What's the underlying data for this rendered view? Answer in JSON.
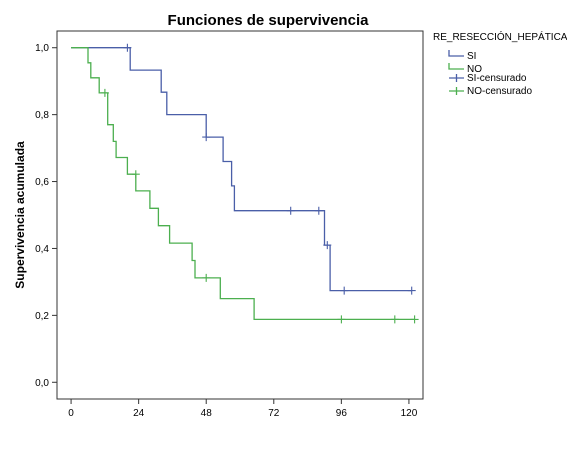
{
  "chart_data": {
    "type": "line",
    "title": "Funciones de supervivencia",
    "xlabel": "",
    "ylabel": "Supervivencia acumulada",
    "xlim": [
      -5,
      125
    ],
    "ylim": [
      -0.05,
      1.05
    ],
    "xticks": [
      0,
      24,
      48,
      72,
      96,
      120
    ],
    "yticks": [
      0.0,
      0.2,
      0.4,
      0.6,
      0.8,
      1.0
    ],
    "ytick_labels": [
      "0,0",
      "0,2",
      "0,4",
      "0,6",
      "0,8",
      "1,0"
    ],
    "legend": {
      "title": "RE_RESECCIÓN_HEPÁTICA",
      "placement": "top-right",
      "entries": [
        "SI",
        "NO",
        "SI-censurado",
        "NO-censurado"
      ]
    },
    "series": [
      {
        "name": "SI",
        "color": "#4a5fa8",
        "steps": [
          [
            0,
            1.0
          ],
          [
            21,
            1.0
          ],
          [
            21,
            0.933
          ],
          [
            32,
            0.933
          ],
          [
            32,
            0.867
          ],
          [
            34,
            0.867
          ],
          [
            34,
            0.8
          ],
          [
            48,
            0.8
          ],
          [
            48,
            0.733
          ],
          [
            54,
            0.733
          ],
          [
            54,
            0.66
          ],
          [
            57,
            0.66
          ],
          [
            57,
            0.587
          ],
          [
            58,
            0.587
          ],
          [
            58,
            0.513
          ],
          [
            90,
            0.513
          ],
          [
            90,
            0.41
          ],
          [
            92,
            0.41
          ],
          [
            92,
            0.274
          ],
          [
            121,
            0.274
          ]
        ],
        "censored": [
          [
            20,
            1.0
          ],
          [
            48,
            0.733
          ],
          [
            78,
            0.513
          ],
          [
            88,
            0.513
          ],
          [
            91,
            0.41
          ],
          [
            97,
            0.274
          ],
          [
            121,
            0.274
          ]
        ]
      },
      {
        "name": "NO",
        "color": "#4caf4f",
        "steps": [
          [
            0,
            1.0
          ],
          [
            6,
            1.0
          ],
          [
            6,
            0.955
          ],
          [
            7,
            0.955
          ],
          [
            7,
            0.91
          ],
          [
            10,
            0.91
          ],
          [
            10,
            0.865
          ],
          [
            13,
            0.865
          ],
          [
            13,
            0.77
          ],
          [
            15,
            0.77
          ],
          [
            15,
            0.72
          ],
          [
            16,
            0.72
          ],
          [
            16,
            0.672
          ],
          [
            20,
            0.672
          ],
          [
            20,
            0.622
          ],
          [
            23,
            0.622
          ],
          [
            23,
            0.572
          ],
          [
            28,
            0.572
          ],
          [
            28,
            0.52
          ],
          [
            31,
            0.52
          ],
          [
            31,
            0.468
          ],
          [
            35,
            0.468
          ],
          [
            35,
            0.416
          ],
          [
            43,
            0.416
          ],
          [
            43,
            0.364
          ],
          [
            44,
            0.364
          ],
          [
            44,
            0.312
          ],
          [
            53,
            0.312
          ],
          [
            53,
            0.25
          ],
          [
            65,
            0.25
          ],
          [
            65,
            0.188
          ],
          [
            122,
            0.188
          ]
        ],
        "censored": [
          [
            12,
            0.865
          ],
          [
            23,
            0.622
          ],
          [
            48,
            0.312
          ],
          [
            96,
            0.188
          ],
          [
            115,
            0.188
          ],
          [
            122,
            0.188
          ]
        ]
      }
    ]
  }
}
